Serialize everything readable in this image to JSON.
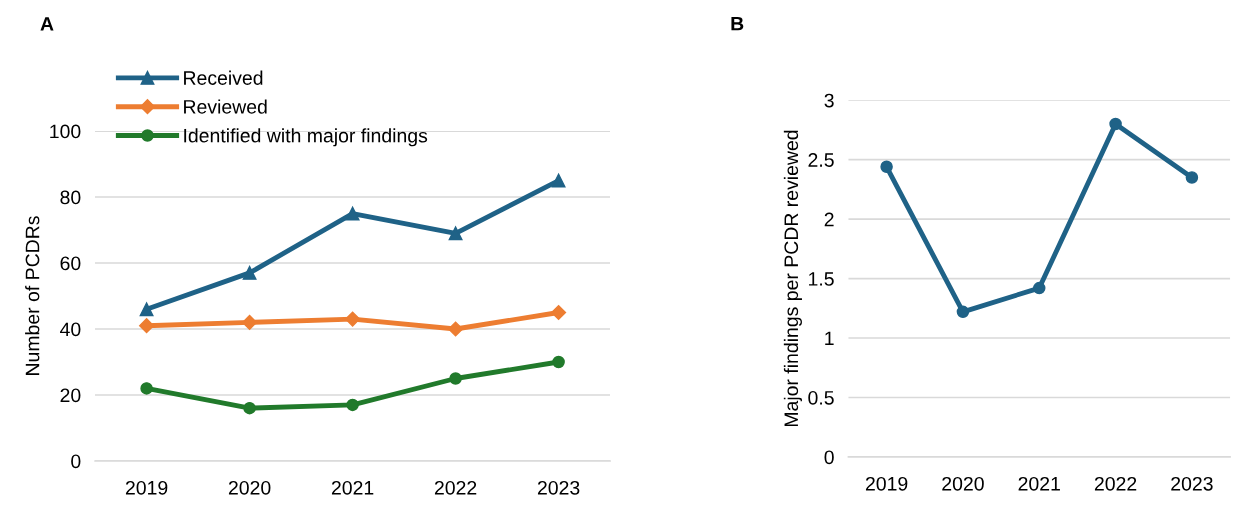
{
  "chart_data": [
    {
      "type": "line",
      "title": "A",
      "ylabel": "Number of PCDRs",
      "categories": [
        "2019",
        "2020",
        "2021",
        "2022",
        "2023"
      ],
      "ylim": [
        0,
        100
      ],
      "yticks": [
        0,
        20,
        40,
        60,
        80,
        100
      ],
      "grid": "y",
      "legend": "top left",
      "line_style": "solid",
      "series": [
        {
          "name": "Received",
          "color": "#1f6287",
          "marker": "triangle",
          "values": [
            46,
            57,
            75,
            69,
            85
          ]
        },
        {
          "name": "Reviewed",
          "color": "#ed7d31",
          "marker": "diamond",
          "values": [
            41,
            42,
            43,
            40,
            45
          ]
        },
        {
          "name": "Identified with major findings",
          "color": "#217a2b",
          "marker": "circle",
          "values": [
            22,
            16,
            17,
            25,
            30
          ]
        }
      ]
    },
    {
      "type": "line",
      "title": "B",
      "ylabel": "Major findings per PCDR reviewed",
      "categories": [
        "2019",
        "2020",
        "2021",
        "2022",
        "2023"
      ],
      "ylim": [
        0,
        3
      ],
      "yticks": [
        0,
        0.5,
        1,
        1.5,
        2,
        2.5,
        3
      ],
      "grid": "y",
      "marker": "circle",
      "line_style": "solid",
      "series": [
        {
          "color": "#1f6287",
          "values": [
            2.44,
            1.22,
            1.42,
            2.8,
            2.35
          ]
        }
      ]
    }
  ]
}
